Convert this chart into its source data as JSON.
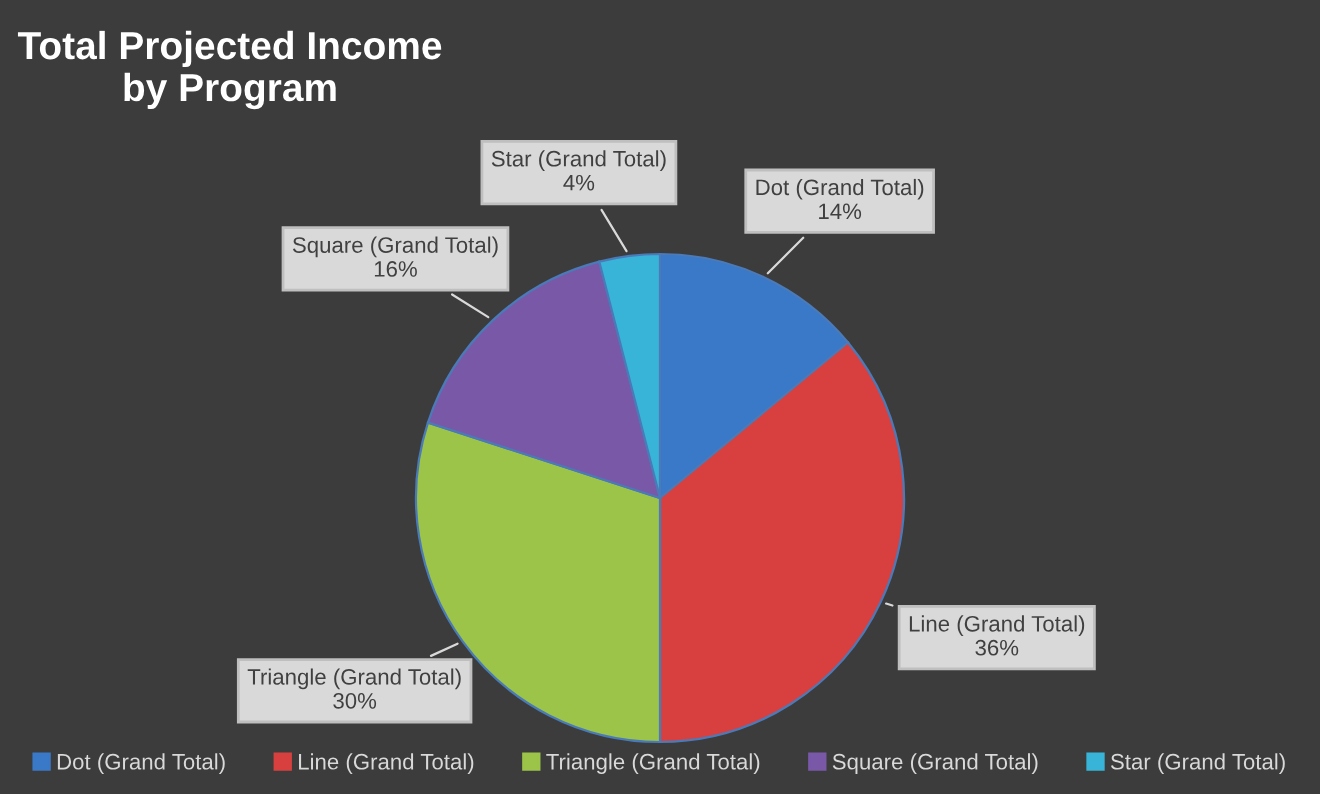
{
  "chart_data": {
    "type": "pie",
    "title": "Total Projected Income\nby Program",
    "categories": [
      "Dot (Grand Total)",
      "Line (Grand Total)",
      "Triangle (Grand Total)",
      "Square (Grand Total)",
      "Star (Grand Total)"
    ],
    "values": [
      14,
      36,
      30,
      16,
      4
    ],
    "value_labels": [
      "14%",
      "36%",
      "30%",
      "16%",
      "4%"
    ],
    "colors": [
      "#3a78c8",
      "#d84040",
      "#9bc448",
      "#7a58a8",
      "#38b4d8"
    ],
    "legend": "bottom"
  }
}
